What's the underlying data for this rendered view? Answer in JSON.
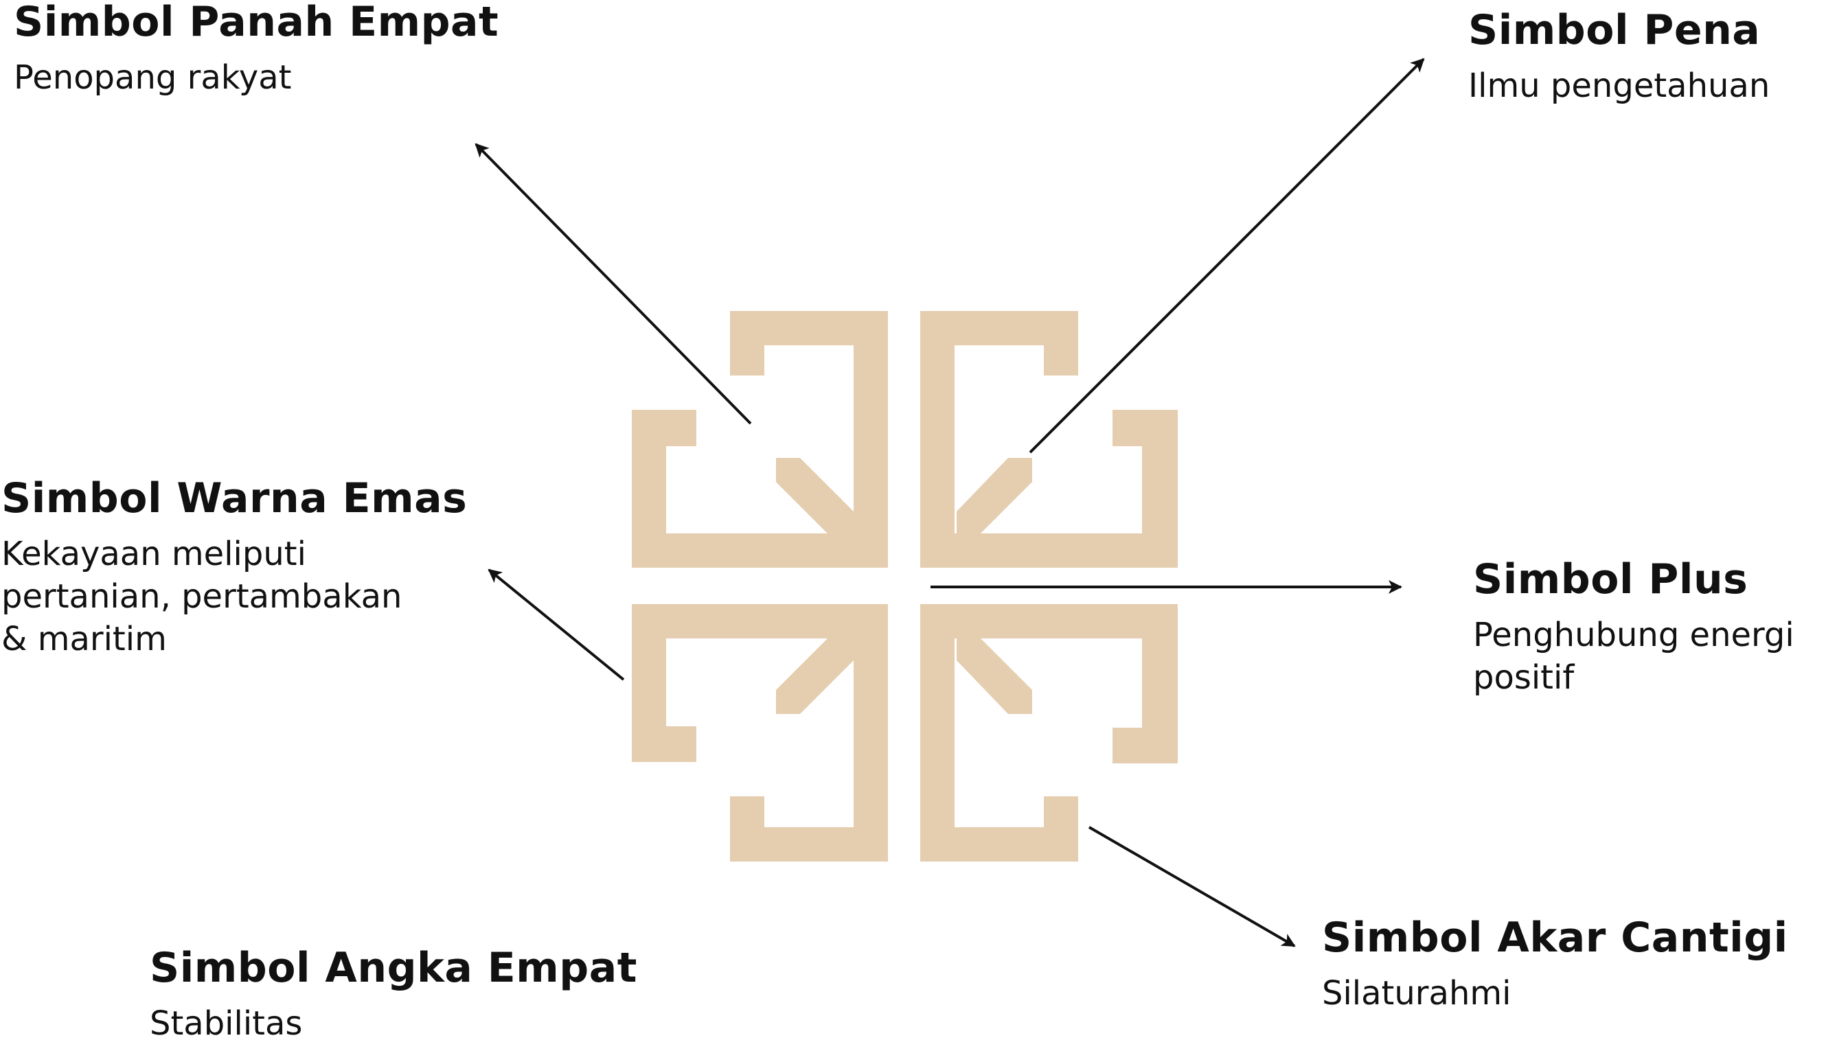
{
  "colors": {
    "emblem": "#e5cdaf",
    "arrow": "#111111",
    "text": "#111111",
    "background": "#ffffff"
  },
  "labels": {
    "panah_empat": {
      "title": "Simbol Panah Empat",
      "desc": "Penopang rakyat"
    },
    "pena": {
      "title": "Simbol Pena",
      "desc": "Ilmu pengetahuan"
    },
    "warna_emas": {
      "title": "Simbol Warna Emas",
      "desc": "Kekayaan meliputi\npertanian, pertambakan\n& maritim"
    },
    "plus": {
      "title": "Simbol Plus",
      "desc": "Penghubung energi\npositif"
    },
    "akar_cantigi": {
      "title": "Simbol Akar Cantigi",
      "desc": "Silaturahmi"
    },
    "angka_empat": {
      "title": "Simbol Angka Empat",
      "desc": "Stabilitas"
    }
  },
  "emblem": {
    "name": "four-arrow-emblem"
  }
}
